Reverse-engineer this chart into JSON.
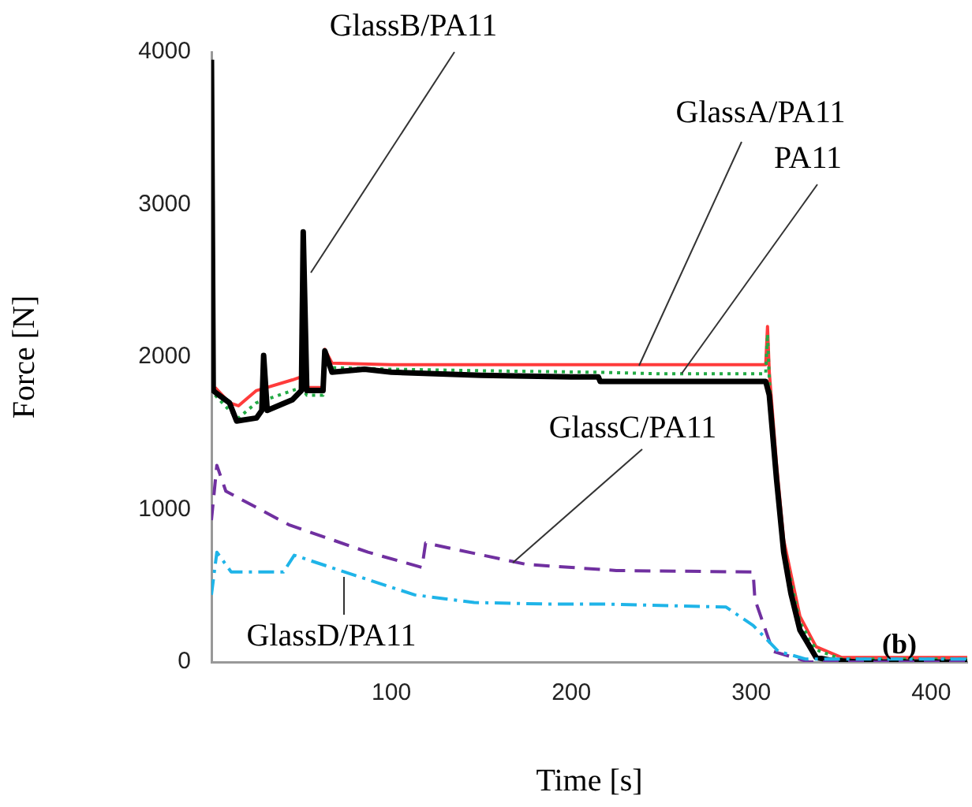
{
  "chart_data": {
    "type": "line",
    "xlabel": "Time [s]",
    "ylabel": "Force [N]",
    "xlim": [
      0,
      420
    ],
    "ylim": [
      0,
      4000
    ],
    "xticks": [
      {
        "value": 0,
        "label": null
      },
      100,
      200,
      300,
      400
    ],
    "yticks": [
      0,
      1000,
      2000,
      3000,
      4000
    ],
    "grid": false,
    "legend": false,
    "marker": "none",
    "annotations": [
      "(b)"
    ],
    "series": [
      {
        "name": "GlassA/PA11",
        "color": "#ff3b3b",
        "line_style": "solid",
        "x": [
          2,
          10,
          15,
          25,
          45,
          50,
          53,
          62,
          63,
          67,
          100,
          150,
          200,
          250,
          308,
          309,
          310,
          314,
          318,
          327,
          336,
          350,
          380,
          420
        ],
        "values": [
          1800,
          1700,
          1680,
          1780,
          1850,
          1870,
          1800,
          1800,
          2050,
          1960,
          1950,
          1950,
          1950,
          1950,
          1950,
          2200,
          1900,
          1300,
          800,
          300,
          100,
          30,
          30,
          30
        ]
      },
      {
        "name": "PA11",
        "color": "#22aa44",
        "line_style": "dotted",
        "x": [
          0,
          2,
          10,
          15,
          25,
          45,
          50,
          53,
          62,
          63,
          67,
          100,
          150,
          215,
          250,
          308,
          309,
          310,
          314,
          318,
          327,
          336,
          350,
          380,
          420
        ],
        "values": [
          1850,
          1750,
          1650,
          1600,
          1700,
          1780,
          1800,
          1750,
          1750,
          2000,
          1930,
          1920,
          1910,
          1900,
          1890,
          1890,
          2150,
          1850,
          1250,
          750,
          260,
          80,
          20,
          20,
          20
        ]
      },
      {
        "name": "GlassB/PA11",
        "color": "#000000",
        "line_style": "solid",
        "x": [
          0,
          1,
          3,
          10,
          14,
          25,
          28,
          29,
          31,
          45,
          50,
          51,
          53,
          62,
          63,
          67,
          85,
          100,
          150,
          200,
          215,
          216,
          308,
          310,
          314,
          318,
          322,
          327,
          336,
          345,
          360,
          380,
          420
        ],
        "values": [
          3950,
          1780,
          1760,
          1700,
          1580,
          1600,
          1650,
          2010,
          1650,
          1720,
          1780,
          2820,
          1780,
          1780,
          2040,
          1900,
          1920,
          1900,
          1880,
          1870,
          1870,
          1840,
          1840,
          1750,
          1200,
          720,
          450,
          210,
          30,
          10,
          0,
          0,
          0
        ]
      },
      {
        "name": "GlassC/PA11",
        "color": "#7030a0",
        "line_style": "dashed",
        "x": [
          0,
          3,
          8,
          43,
          87,
          117,
          119,
          175,
          225,
          301,
          302,
          312,
          332,
          420
        ],
        "values": [
          930,
          1290,
          1120,
          900,
          720,
          620,
          780,
          640,
          600,
          590,
          410,
          70,
          0,
          0
        ]
      },
      {
        "name": "GlassD/PA11",
        "color": "#1fb4e8",
        "line_style": "dashdot",
        "x": [
          0,
          3,
          11,
          40,
          46,
          87,
          113,
          146,
          187,
          219,
          286,
          301,
          315,
          330,
          420
        ],
        "values": [
          440,
          720,
          590,
          590,
          700,
          540,
          440,
          390,
          380,
          380,
          360,
          240,
          70,
          20,
          20
        ]
      }
    ]
  }
}
